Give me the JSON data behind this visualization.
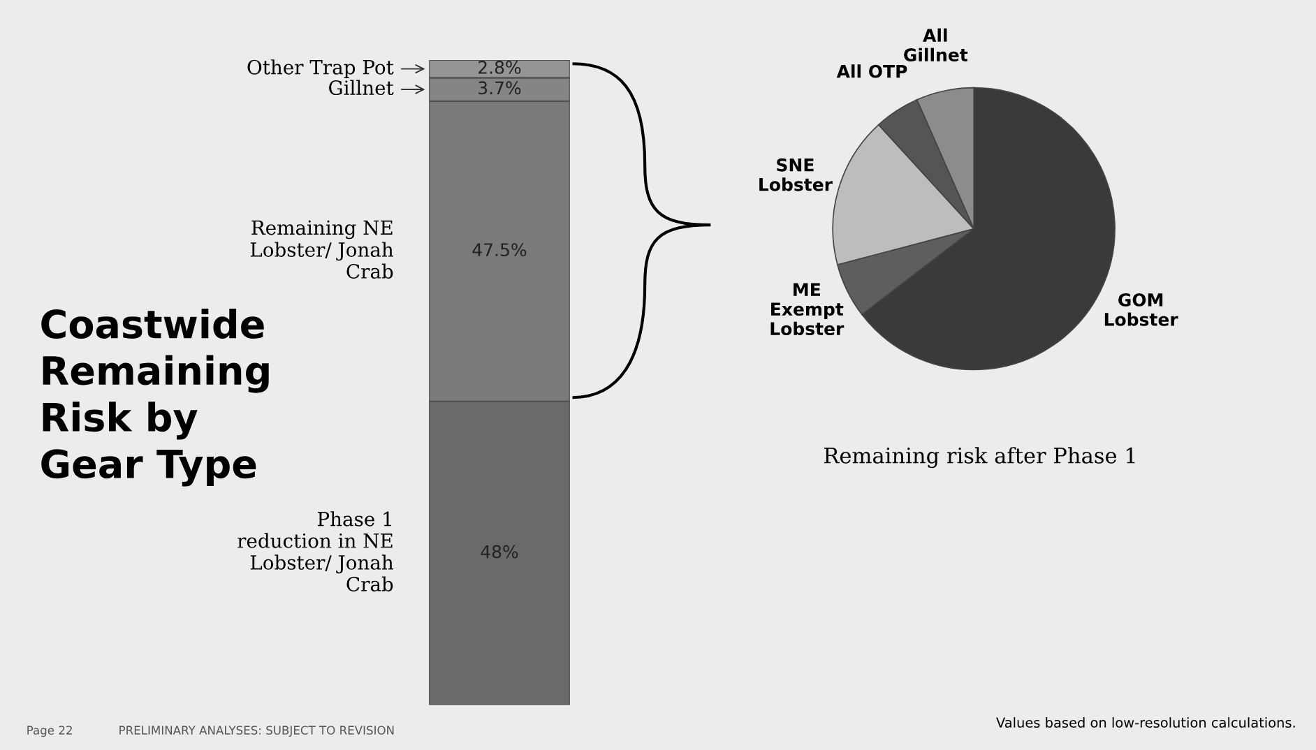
{
  "chart_data": [
    {
      "type": "bar",
      "stacked": true,
      "title": "Coastwide Remaining Risk by Gear Type",
      "categories": [
        null
      ],
      "series": [
        {
          "name": "Phase 1 reduction in NE Lobster/ Jonah Crab",
          "color": "#6a6a6a",
          "values": [
            48
          ],
          "value_labels": [
            "48%"
          ]
        },
        {
          "name": "Remaining NE Lobster/ Jonah Crab",
          "color": "#7a7a7a",
          "values": [
            47.5
          ],
          "value_labels": [
            "47.5%"
          ]
        },
        {
          "name": "Gillnet",
          "color": "#858585",
          "values": [
            3.7
          ],
          "value_labels": [
            "3.7%"
          ]
        },
        {
          "name": "Other Trap Pot",
          "color": "#959595",
          "values": [
            2.8
          ],
          "value_labels": [
            "2.8%"
          ]
        }
      ],
      "annotations": [
        "Page 22",
        "PRELIMINARY ANALYSES: SUBJECT TO REVISION"
      ]
    },
    {
      "type": "pie",
      "title": "Remaining risk after Phase 1",
      "categories": [
        "GOM Lobster",
        "ME Exempt Lobster",
        "SNE Lobster",
        "All OTP",
        "All Gillnet"
      ],
      "values": [
        64.6,
        6.3,
        17.3,
        5.2,
        6.6
      ],
      "colors": [
        "#3a3a3a",
        "#5e5e5e",
        "#bdbdbd",
        "#555555",
        "#8c8c8c"
      ],
      "annotations": [
        "Values based on low-resolution calculations."
      ]
    }
  ]
}
